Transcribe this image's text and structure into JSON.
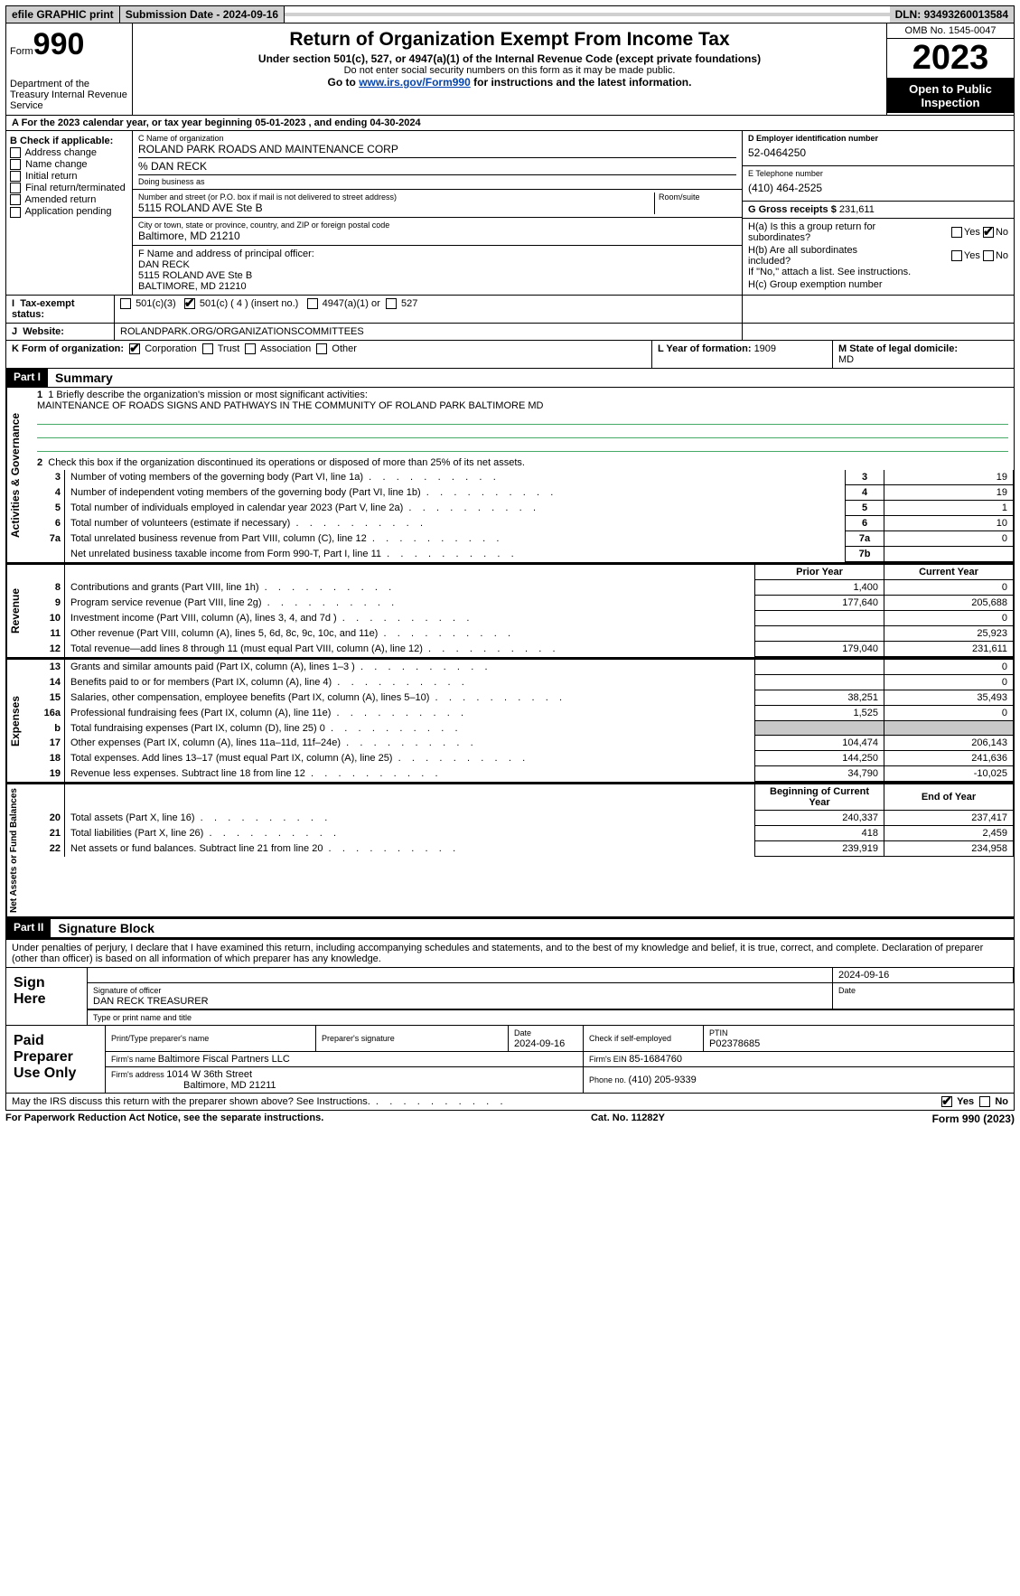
{
  "topbar": {
    "efile": "efile GRAPHIC print",
    "submission_label": "Submission Date - ",
    "submission_date": "2024-09-16",
    "dln_label": "DLN: ",
    "dln": "93493260013584"
  },
  "header": {
    "form_label": "Form",
    "form_number": "990",
    "dept": "Department of the Treasury\nInternal Revenue Service",
    "title": "Return of Organization Exempt From Income Tax",
    "subtitle": "Under section 501(c), 527, or 4947(a)(1) of the Internal Revenue Code (except private foundations)",
    "ssn_note": "Do not enter social security numbers on this form as it may be made public.",
    "goto_prefix": "Go to ",
    "goto_link": "www.irs.gov/Form990",
    "goto_suffix": " for instructions and the latest information.",
    "omb": "OMB No. 1545-0047",
    "year": "2023",
    "open": "Open to Public Inspection"
  },
  "line_a": {
    "prefix": "A For the 2023 calendar year, or tax year beginning ",
    "begin": "05-01-2023",
    "mid": "  , and ending ",
    "end": "04-30-2024"
  },
  "boxB": {
    "label": "B Check if applicable:",
    "items": [
      "Address change",
      "Name change",
      "Initial return",
      "Final return/terminated",
      "Amended return",
      "Application pending"
    ]
  },
  "boxC": {
    "name_label": "C Name of organization",
    "name": "ROLAND PARK ROADS AND MAINTENANCE CORP",
    "care_of": "% DAN RECK",
    "dba_label": "Doing business as",
    "dba": "",
    "street_label": "Number and street (or P.O. box if mail is not delivered to street address)",
    "street": "5115 ROLAND AVE Ste B",
    "room_label": "Room/suite",
    "room": "",
    "city_label": "City or town, state or province, country, and ZIP or foreign postal code",
    "city": "Baltimore, MD  21210"
  },
  "boxD": {
    "label": "D Employer identification number",
    "value": "52-0464250"
  },
  "boxE": {
    "label": "E Telephone number",
    "value": "(410) 464-2525"
  },
  "boxG": {
    "label": "G Gross receipts $ ",
    "value": "231,611"
  },
  "boxF": {
    "label": "F  Name and address of principal officer:",
    "name": "DAN RECK",
    "street": "5115 ROLAND AVE Ste B",
    "city": "BALTIMORE, MD  21210"
  },
  "boxH": {
    "a_label": "H(a)  Is this a group return for subordinates?",
    "a_yes": "Yes",
    "a_no": "No",
    "a_checked": "no",
    "b_label": "H(b)  Are all subordinates included?",
    "b_yes": "Yes",
    "b_no": "No",
    "b_note": "If \"No,\" attach a list. See instructions.",
    "c_label": "H(c)  Group exemption number ",
    "c_value": ""
  },
  "lineI": {
    "label": "Tax-exempt status:",
    "o1": "501(c)(3)",
    "o2": "501(c) ( 4 ) (insert no.)",
    "o3": "4947(a)(1) or",
    "o4": "527",
    "checked": "o2"
  },
  "lineJ": {
    "label": "Website:",
    "value": "ROLANDPARK.ORG/ORGANIZATIONSCOMMITTEES"
  },
  "lineK": {
    "label": "K Form of organization:",
    "o1": "Corporation",
    "o2": "Trust",
    "o3": "Association",
    "o4": "Other",
    "checked": "o1"
  },
  "lineL": {
    "label": "L Year of formation: ",
    "value": "1909"
  },
  "lineM": {
    "label": "M State of legal domicile:",
    "value": "MD"
  },
  "part1": {
    "label": "Part I",
    "title": "Summary"
  },
  "summary": {
    "side1": "Activities & Governance",
    "line1_label": "1  Briefly describe the organization's mission or most significant activities:",
    "line1_value": "MAINTENANCE OF ROADS SIGNS AND PATHWAYS IN THE COMMUNITY OF ROLAND PARK BALTIMORE MD",
    "line2": "Check this box      if the organization discontinued its operations or disposed of more than 25% of its net assets.",
    "rows_gov": [
      {
        "n": "3",
        "desc": "Number of voting members of the governing body (Part VI, line 1a)",
        "cell": "3",
        "val": "19"
      },
      {
        "n": "4",
        "desc": "Number of independent voting members of the governing body (Part VI, line 1b)",
        "cell": "4",
        "val": "19"
      },
      {
        "n": "5",
        "desc": "Total number of individuals employed in calendar year 2023 (Part V, line 2a)",
        "cell": "5",
        "val": "1"
      },
      {
        "n": "6",
        "desc": "Total number of volunteers (estimate if necessary)",
        "cell": "6",
        "val": "10"
      },
      {
        "n": "7a",
        "desc": "Total unrelated business revenue from Part VIII, column (C), line 12",
        "cell": "7a",
        "val": "0"
      },
      {
        "n": "",
        "desc": "Net unrelated business taxable income from Form 990-T, Part I, line 11",
        "cell": "7b",
        "val": ""
      }
    ],
    "side2": "Revenue",
    "hdr_py": "Prior Year",
    "hdr_cy": "Current Year",
    "rows_rev": [
      {
        "n": "8",
        "desc": "Contributions and grants (Part VIII, line 1h)",
        "py": "1,400",
        "cy": "0"
      },
      {
        "n": "9",
        "desc": "Program service revenue (Part VIII, line 2g)",
        "py": "177,640",
        "cy": "205,688"
      },
      {
        "n": "10",
        "desc": "Investment income (Part VIII, column (A), lines 3, 4, and 7d )",
        "py": "",
        "cy": "0"
      },
      {
        "n": "11",
        "desc": "Other revenue (Part VIII, column (A), lines 5, 6d, 8c, 9c, 10c, and 11e)",
        "py": "",
        "cy": "25,923"
      },
      {
        "n": "12",
        "desc": "Total revenue—add lines 8 through 11 (must equal Part VIII, column (A), line 12)",
        "py": "179,040",
        "cy": "231,611"
      }
    ],
    "side3": "Expenses",
    "rows_exp": [
      {
        "n": "13",
        "desc": "Grants and similar amounts paid (Part IX, column (A), lines 1–3 )",
        "py": "",
        "cy": "0"
      },
      {
        "n": "14",
        "desc": "Benefits paid to or for members (Part IX, column (A), line 4)",
        "py": "",
        "cy": "0"
      },
      {
        "n": "15",
        "desc": "Salaries, other compensation, employee benefits (Part IX, column (A), lines 5–10)",
        "py": "38,251",
        "cy": "35,493"
      },
      {
        "n": "16a",
        "desc": "Professional fundraising fees (Part IX, column (A), line 11e)",
        "py": "1,525",
        "cy": "0"
      },
      {
        "n": "b",
        "desc": "Total fundraising expenses (Part IX, column (D), line 25) 0",
        "py": "shade",
        "cy": "shade"
      },
      {
        "n": "17",
        "desc": "Other expenses (Part IX, column (A), lines 11a–11d, 11f–24e)",
        "py": "104,474",
        "cy": "206,143"
      },
      {
        "n": "18",
        "desc": "Total expenses. Add lines 13–17 (must equal Part IX, column (A), line 25)",
        "py": "144,250",
        "cy": "241,636"
      },
      {
        "n": "19",
        "desc": "Revenue less expenses. Subtract line 18 from line 12",
        "py": "34,790",
        "cy": "-10,025"
      }
    ],
    "side4": "Net Assets or Fund Balances",
    "hdr_boy": "Beginning of Current Year",
    "hdr_eoy": "End of Year",
    "rows_net": [
      {
        "n": "20",
        "desc": "Total assets (Part X, line 16)",
        "py": "240,337",
        "cy": "237,417"
      },
      {
        "n": "21",
        "desc": "Total liabilities (Part X, line 26)",
        "py": "418",
        "cy": "2,459"
      },
      {
        "n": "22",
        "desc": "Net assets or fund balances. Subtract line 21 from line 20",
        "py": "239,919",
        "cy": "234,958"
      }
    ]
  },
  "part2": {
    "label": "Part II",
    "title": "Signature Block"
  },
  "sig": {
    "decl": "Under penalties of perjury, I declare that I have examined this return, including accompanying schedules and statements, and to the best of my knowledge and belief, it is true, correct, and complete. Declaration of preparer (other than officer) is based on all information of which preparer has any knowledge.",
    "sign_here": "Sign Here",
    "sig_label": "Signature of officer",
    "date_label": "Date",
    "date_value": "2024-09-16",
    "name_title": "DAN RECK  TREASURER",
    "name_label": "Type or print name and title",
    "paid": "Paid Preparer Use Only",
    "prep_name_label": "Print/Type preparer's name",
    "prep_name": "",
    "prep_sig_label": "Preparer's signature",
    "prep_date_label": "Date",
    "prep_date": "2024-09-16",
    "prep_self": "Check        if self-employed",
    "ptin_label": "PTIN",
    "ptin": "P02378685",
    "firm_name_label": "Firm's name   ",
    "firm_name": "Baltimore Fiscal Partners LLC",
    "firm_ein_label": "Firm's EIN  ",
    "firm_ein": "85-1684760",
    "firm_addr_label": "Firm's address ",
    "firm_addr1": "1014 W 36th Street",
    "firm_addr2": "Baltimore, MD  21211",
    "firm_phone_label": "Phone no. ",
    "firm_phone": "(410) 205-9339"
  },
  "discuss": {
    "text": "May the IRS discuss this return with the preparer shown above? See Instructions.",
    "yes": "Yes",
    "no": "No",
    "checked": "yes"
  },
  "footer": {
    "left": "For Paperwork Reduction Act Notice, see the separate instructions.",
    "mid": "Cat. No. 11282Y",
    "right": "Form 990 (2023)"
  }
}
